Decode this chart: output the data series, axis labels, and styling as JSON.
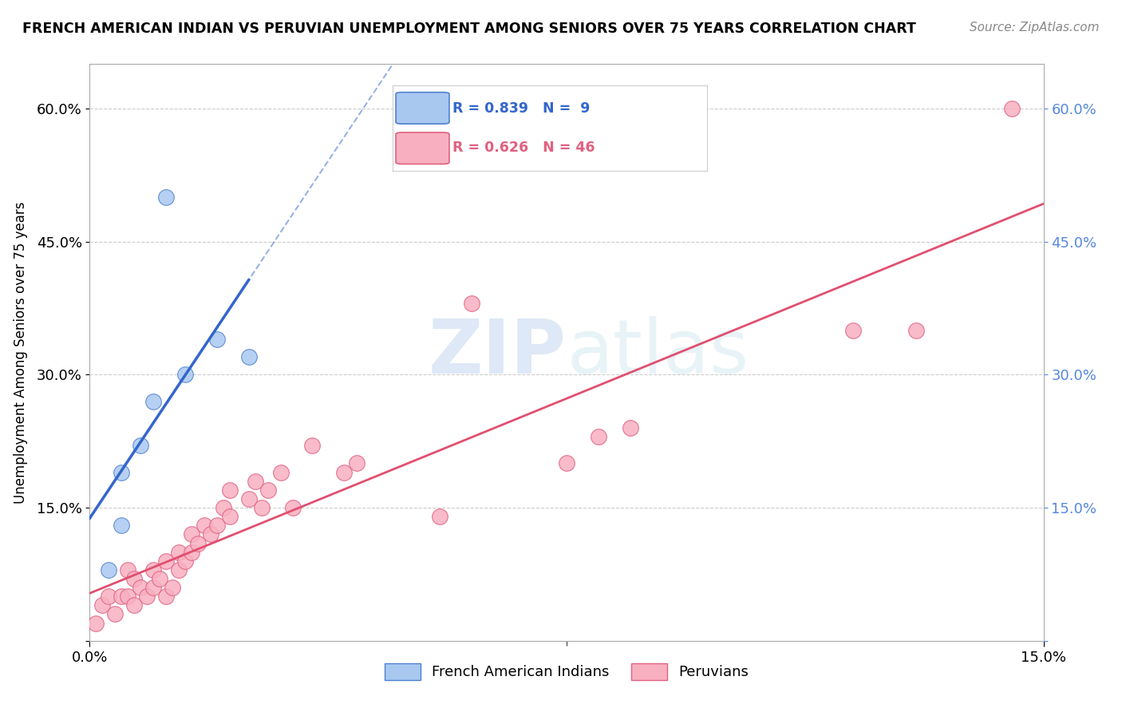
{
  "title": "FRENCH AMERICAN INDIAN VS PERUVIAN UNEMPLOYMENT AMONG SENIORS OVER 75 YEARS CORRELATION CHART",
  "source": "Source: ZipAtlas.com",
  "ylabel": "Unemployment Among Seniors over 75 years",
  "xlim": [
    0,
    0.15
  ],
  "ylim": [
    0,
    0.65
  ],
  "ytick_vals": [
    0.0,
    0.15,
    0.3,
    0.45,
    0.6
  ],
  "ytick_labels_left": [
    "",
    "15.0%",
    "30.0%",
    "45.0%",
    "60.0%"
  ],
  "ytick_labels_right": [
    "",
    "15.0%",
    "30.0%",
    "45.0%",
    "60.0%"
  ],
  "xtick_vals": [
    0.0,
    0.15
  ],
  "xtick_labels": [
    "0.0%",
    "15.0%"
  ],
  "blue_R": 0.839,
  "blue_N": 9,
  "pink_R": 0.626,
  "pink_N": 46,
  "blue_fill": "#a8c8f0",
  "blue_edge": "#5080d0",
  "pink_fill": "#f8b0c0",
  "pink_edge": "#e06080",
  "blue_line_color": "#3366cc",
  "pink_line_color": "#e05070",
  "watermark_text": "ZIPatlas",
  "blue_points": [
    [
      0.003,
      0.08
    ],
    [
      0.005,
      0.13
    ],
    [
      0.005,
      0.19
    ],
    [
      0.008,
      0.22
    ],
    [
      0.01,
      0.27
    ],
    [
      0.012,
      0.5
    ],
    [
      0.015,
      0.3
    ],
    [
      0.02,
      0.34
    ],
    [
      0.025,
      0.32
    ]
  ],
  "pink_points": [
    [
      0.001,
      0.02
    ],
    [
      0.002,
      0.04
    ],
    [
      0.003,
      0.05
    ],
    [
      0.004,
      0.03
    ],
    [
      0.005,
      0.05
    ],
    [
      0.006,
      0.05
    ],
    [
      0.006,
      0.08
    ],
    [
      0.007,
      0.04
    ],
    [
      0.007,
      0.07
    ],
    [
      0.008,
      0.06
    ],
    [
      0.009,
      0.05
    ],
    [
      0.01,
      0.06
    ],
    [
      0.01,
      0.08
    ],
    [
      0.011,
      0.07
    ],
    [
      0.012,
      0.05
    ],
    [
      0.012,
      0.09
    ],
    [
      0.013,
      0.06
    ],
    [
      0.014,
      0.08
    ],
    [
      0.014,
      0.1
    ],
    [
      0.015,
      0.09
    ],
    [
      0.016,
      0.1
    ],
    [
      0.016,
      0.12
    ],
    [
      0.017,
      0.11
    ],
    [
      0.018,
      0.13
    ],
    [
      0.019,
      0.12
    ],
    [
      0.02,
      0.13
    ],
    [
      0.021,
      0.15
    ],
    [
      0.022,
      0.14
    ],
    [
      0.022,
      0.17
    ],
    [
      0.025,
      0.16
    ],
    [
      0.026,
      0.18
    ],
    [
      0.027,
      0.15
    ],
    [
      0.028,
      0.17
    ],
    [
      0.03,
      0.19
    ],
    [
      0.032,
      0.15
    ],
    [
      0.035,
      0.22
    ],
    [
      0.04,
      0.19
    ],
    [
      0.042,
      0.2
    ],
    [
      0.055,
      0.14
    ],
    [
      0.06,
      0.38
    ],
    [
      0.075,
      0.2
    ],
    [
      0.08,
      0.23
    ],
    [
      0.085,
      0.24
    ],
    [
      0.12,
      0.35
    ],
    [
      0.13,
      0.35
    ],
    [
      0.145,
      0.6
    ]
  ]
}
